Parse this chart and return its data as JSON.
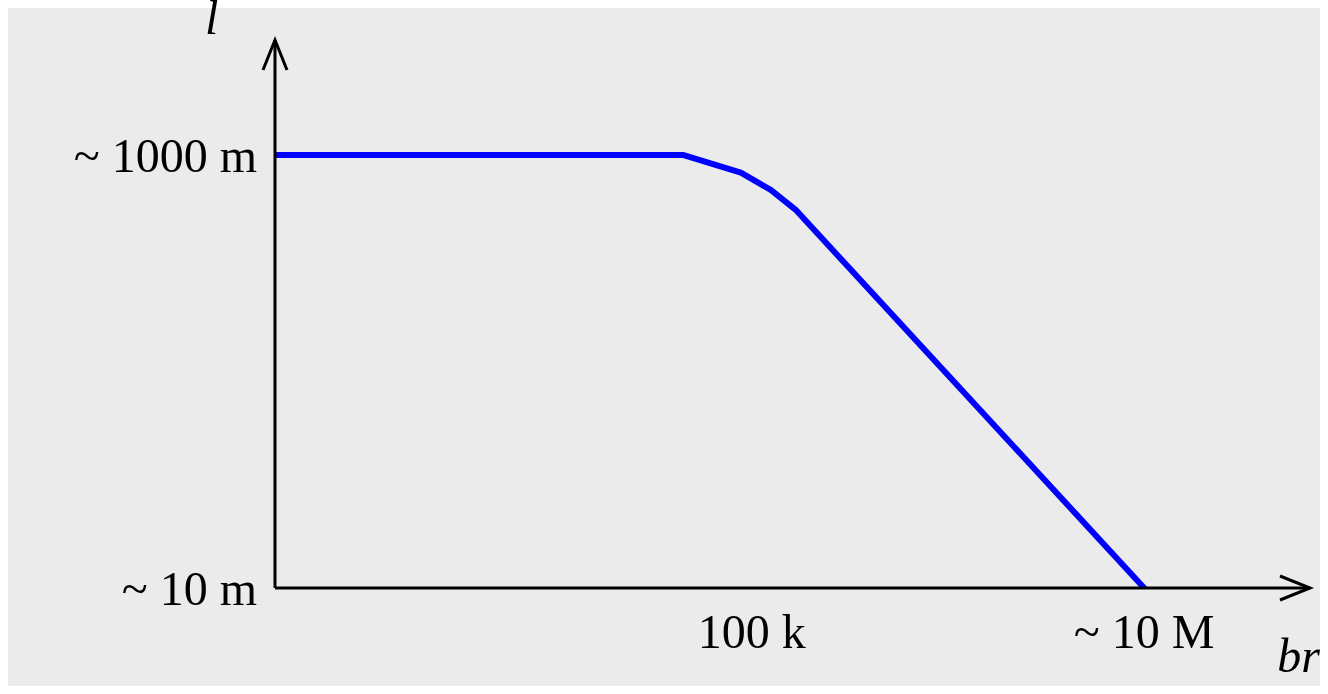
{
  "chart_data": {
    "type": "line",
    "xlabel": "br",
    "ylabel": "l",
    "log": "xy",
    "x": [
      372,
      45000,
      88000,
      125000,
      167000,
      10000000
    ],
    "series": [
      {
        "color": "#0000ff",
        "values": [
          1000,
          1000,
          830,
          690,
          560,
          10
        ]
      }
    ],
    "xlim": [
      372,
      70000000
    ],
    "ylim": [
      10,
      3400
    ],
    "xticks": [
      {
        "value": 100000,
        "label": "100 k"
      },
      {
        "value": 10000000,
        "label": "~ 10 M"
      }
    ],
    "yticks": [
      {
        "value": 1000,
        "label": "~ 1000 m"
      },
      {
        "value": 10,
        "label": "~ 10 m"
      }
    ]
  }
}
